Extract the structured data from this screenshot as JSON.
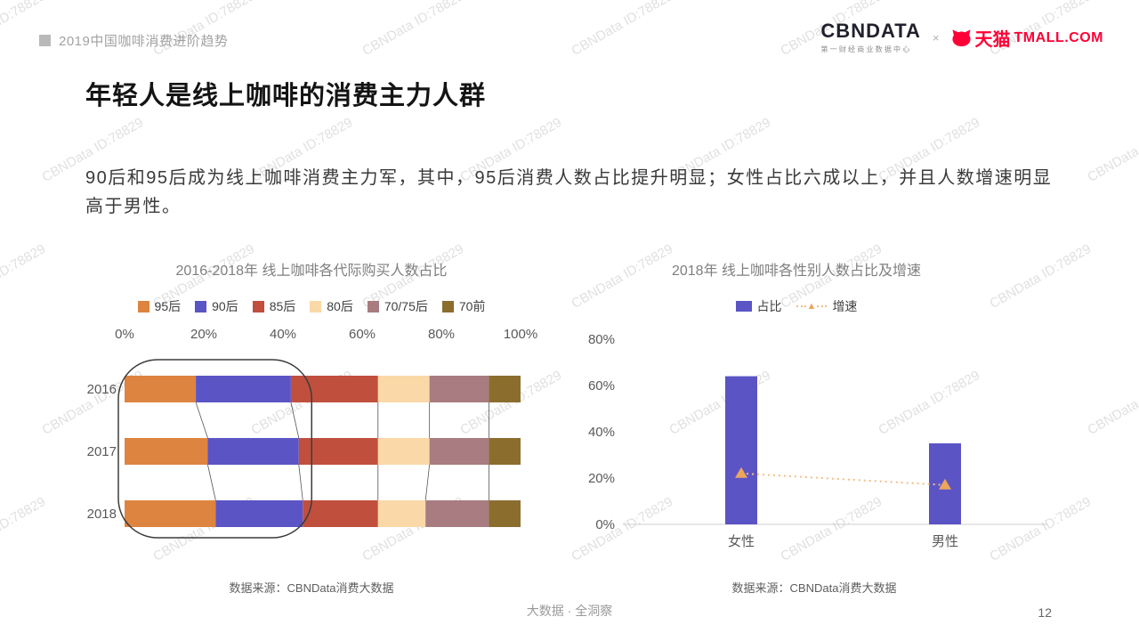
{
  "header": {
    "report_title": "2019中国咖啡消费进阶趋势",
    "cbndata_logo": "CBNDATA",
    "cbndata_subtitle": "第一财经商业数据中心",
    "logo_separator": "×",
    "tmall_logo_cn": "天猫",
    "tmall_logo_en": "TMALL.COM"
  },
  "title": "年轻人是线上咖啡的消费主力人群",
  "body_text": "90后和95后成为线上咖啡消费主力军，其中，95后消费人数占比提升明显；女性占比六成以上，并且人数增速明显高于男性。",
  "watermark": "CBNData ID:78829",
  "footer": {
    "slogan": "大数据 · 全洞察",
    "page_number": "12"
  },
  "colors": {
    "tmall_red": "#FF0036",
    "bar_purple": "#5B54C5"
  },
  "chart_data": [
    {
      "type": "bar",
      "subtype": "horizontal-stacked",
      "title": "2016-2018年 线上咖啡各代际购买人数占比",
      "categories": [
        "2016",
        "2017",
        "2018"
      ],
      "series": [
        {
          "name": "95后",
          "color": "#DD8440",
          "values": [
            18,
            21,
            23
          ]
        },
        {
          "name": "90后",
          "color": "#5B54C5",
          "values": [
            24,
            23,
            22
          ]
        },
        {
          "name": "85后",
          "color": "#C14F3E",
          "values": [
            22,
            20,
            19
          ]
        },
        {
          "name": "80后",
          "color": "#FAD8A8",
          "values": [
            13,
            13,
            12
          ]
        },
        {
          "name": "70/75后",
          "color": "#A87C80",
          "values": [
            15,
            15,
            16
          ]
        },
        {
          "name": "70前",
          "color": "#8B6D2E",
          "values": [
            8,
            8,
            8
          ]
        }
      ],
      "x_ticks": [
        "0%",
        "20%",
        "40%",
        "60%",
        "80%",
        "100%"
      ],
      "xlim": [
        0,
        100
      ],
      "annotation_covers": [
        "95后",
        "90后"
      ],
      "source": "数据来源：CBNData消费大数据"
    },
    {
      "type": "bar",
      "subtype": "bar+line",
      "title": "2018年 线上咖啡各性别人数占比及增速",
      "categories": [
        "女性",
        "男性"
      ],
      "series": [
        {
          "name": "占比",
          "type": "bar",
          "color": "#5B54C5",
          "values": [
            64,
            35
          ]
        },
        {
          "name": "增速",
          "type": "line",
          "color": "#F2BE83",
          "marker_color": "#ECA55D",
          "values": [
            22,
            17
          ]
        }
      ],
      "y_ticks": [
        "0%",
        "20%",
        "40%",
        "60%",
        "80%"
      ],
      "ylim": [
        0,
        80
      ],
      "legend_position": "top",
      "source": "数据来源：CBNData消费大数据"
    }
  ]
}
